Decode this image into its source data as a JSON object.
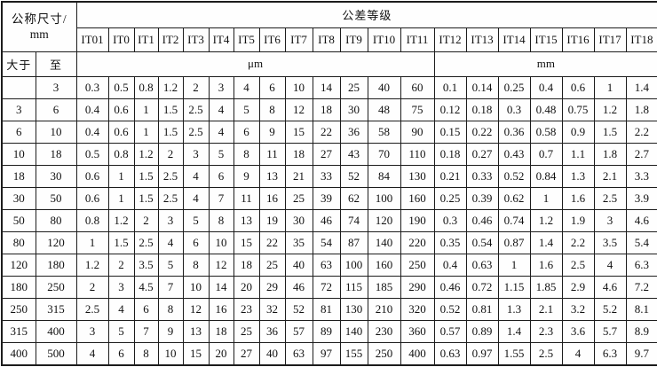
{
  "table": {
    "header": {
      "nominal_size_line1": "公称尺寸/",
      "nominal_size_line2": "mm",
      "tolerance_grade_label": "公差等级",
      "over_label": "大于",
      "to_label": "至",
      "um_unit_label": "μm",
      "mm_unit_label": "mm"
    },
    "grade_columns": [
      "IT01",
      "IT0",
      "IT1",
      "IT2",
      "IT3",
      "IT4",
      "IT5",
      "IT6",
      "IT7",
      "IT8",
      "IT9",
      "IT10",
      "IT11",
      "IT12",
      "IT13",
      "IT14",
      "IT15",
      "IT16",
      "IT17",
      "IT18"
    ],
    "rows": [
      {
        "over": "",
        "to": "3",
        "values": [
          "0.3",
          "0.5",
          "0.8",
          "1.2",
          "2",
          "3",
          "4",
          "6",
          "10",
          "14",
          "25",
          "40",
          "60",
          "0.1",
          "0.14",
          "0.25",
          "0.4",
          "0.6",
          "1",
          "1.4"
        ]
      },
      {
        "over": "3",
        "to": "6",
        "values": [
          "0.4",
          "0.6",
          "1",
          "1.5",
          "2.5",
          "4",
          "5",
          "8",
          "12",
          "18",
          "30",
          "48",
          "75",
          "0.12",
          "0.18",
          "0.3",
          "0.48",
          "0.75",
          "1.2",
          "1.8"
        ]
      },
      {
        "over": "6",
        "to": "10",
        "values": [
          "0.4",
          "0.6",
          "1",
          "1.5",
          "2.5",
          "4",
          "6",
          "9",
          "15",
          "22",
          "36",
          "58",
          "90",
          "0.15",
          "0.22",
          "0.36",
          "0.58",
          "0.9",
          "1.5",
          "2.2"
        ]
      },
      {
        "over": "10",
        "to": "18",
        "values": [
          "0.5",
          "0.8",
          "1.2",
          "2",
          "3",
          "5",
          "8",
          "11",
          "18",
          "27",
          "43",
          "70",
          "110",
          "0.18",
          "0.27",
          "0.43",
          "0.7",
          "1.1",
          "1.8",
          "2.7"
        ]
      },
      {
        "over": "18",
        "to": "30",
        "values": [
          "0.6",
          "1",
          "1.5",
          "2.5",
          "4",
          "6",
          "9",
          "13",
          "21",
          "33",
          "52",
          "84",
          "130",
          "0.21",
          "0.33",
          "0.52",
          "0.84",
          "1.3",
          "2.1",
          "3.3"
        ]
      },
      {
        "over": "30",
        "to": "50",
        "values": [
          "0.6",
          "1",
          "1.5",
          "2.5",
          "4",
          "7",
          "11",
          "16",
          "25",
          "39",
          "62",
          "100",
          "160",
          "0.25",
          "0.39",
          "0.62",
          "1",
          "1.6",
          "2.5",
          "3.9"
        ]
      },
      {
        "over": "50",
        "to": "80",
        "values": [
          "0.8",
          "1.2",
          "2",
          "3",
          "5",
          "8",
          "13",
          "19",
          "30",
          "46",
          "74",
          "120",
          "190",
          "0.3",
          "0.46",
          "0.74",
          "1.2",
          "1.9",
          "3",
          "4.6"
        ]
      },
      {
        "over": "80",
        "to": "120",
        "values": [
          "1",
          "1.5",
          "2.5",
          "4",
          "6",
          "10",
          "15",
          "22",
          "35",
          "54",
          "87",
          "140",
          "220",
          "0.35",
          "0.54",
          "0.87",
          "1.4",
          "2.2",
          "3.5",
          "5.4"
        ]
      },
      {
        "over": "120",
        "to": "180",
        "values": [
          "1.2",
          "2",
          "3.5",
          "5",
          "8",
          "12",
          "18",
          "25",
          "40",
          "63",
          "100",
          "160",
          "250",
          "0.4",
          "0.63",
          "1",
          "1.6",
          "2.5",
          "4",
          "6.3"
        ]
      },
      {
        "over": "180",
        "to": "250",
        "values": [
          "2",
          "3",
          "4.5",
          "7",
          "10",
          "14",
          "20",
          "29",
          "46",
          "72",
          "115",
          "185",
          "290",
          "0.46",
          "0.72",
          "1.15",
          "1.85",
          "2.9",
          "4.6",
          "7.2"
        ]
      },
      {
        "over": "250",
        "to": "315",
        "values": [
          "2.5",
          "4",
          "6",
          "8",
          "12",
          "16",
          "23",
          "32",
          "52",
          "81",
          "130",
          "210",
          "320",
          "0.52",
          "0.81",
          "1.3",
          "2.1",
          "3.2",
          "5.2",
          "8.1"
        ]
      },
      {
        "over": "315",
        "to": "400",
        "values": [
          "3",
          "5",
          "7",
          "9",
          "13",
          "18",
          "25",
          "36",
          "57",
          "89",
          "140",
          "230",
          "360",
          "0.57",
          "0.89",
          "1.4",
          "2.3",
          "3.6",
          "5.7",
          "8.9"
        ]
      },
      {
        "over": "400",
        "to": "500",
        "values": [
          "4",
          "6",
          "8",
          "10",
          "15",
          "20",
          "27",
          "40",
          "63",
          "97",
          "155",
          "250",
          "400",
          "0.63",
          "0.97",
          "1.55",
          "2.5",
          "4",
          "6.3",
          "9.7"
        ]
      }
    ],
    "um_colspan": 13,
    "mm_colspan": 7
  }
}
